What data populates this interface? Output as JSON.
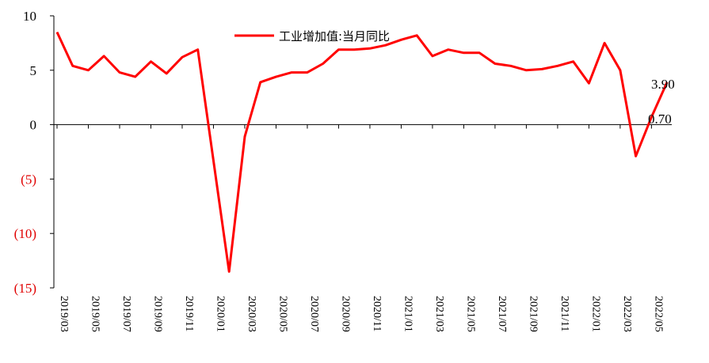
{
  "chart_data": {
    "type": "line",
    "title": "",
    "xlabel": "",
    "ylabel": "",
    "ylim": [
      -15,
      10
    ],
    "y_ticks": [
      10,
      5,
      0,
      -5,
      -10,
      -15
    ],
    "y_tick_labels": [
      "10",
      "5",
      "0",
      "(5)",
      "(10)",
      "(15)"
    ],
    "negative_tick_color": "#e00000",
    "grid": false,
    "legend_position": "top-center",
    "x": [
      "2019/03",
      "2019/04",
      "2019/05",
      "2019/06",
      "2019/07",
      "2019/08",
      "2019/09",
      "2019/10",
      "2019/11",
      "2019/12",
      "2020/01",
      "2020/02",
      "2020/03",
      "2020/04",
      "2020/05",
      "2020/06",
      "2020/07",
      "2020/08",
      "2020/09",
      "2020/10",
      "2020/11",
      "2020/12",
      "2021/01",
      "2021/02",
      "2021/03",
      "2021/04",
      "2021/05",
      "2021/06",
      "2021/07",
      "2021/08",
      "2021/09",
      "2021/10",
      "2021/11",
      "2021/12",
      "2022/01",
      "2022/02",
      "2022/03",
      "2022/04",
      "2022/05",
      "2022/06"
    ],
    "x_tick_labels": [
      "2019/03",
      "2019/05",
      "2019/07",
      "2019/09",
      "2019/11",
      "2020/01",
      "2020/03",
      "2020/05",
      "2020/07",
      "2020/09",
      "2020/11",
      "2021/01",
      "2021/03",
      "2021/05",
      "2021/07",
      "2021/09",
      "2021/11",
      "2022/01",
      "2022/03",
      "2022/05"
    ],
    "series": [
      {
        "name": "工业增加值:当月同比",
        "color": "#ff0000",
        "values": [
          8.5,
          5.4,
          5.0,
          6.3,
          4.8,
          4.4,
          5.8,
          4.7,
          6.2,
          6.9,
          null,
          -13.5,
          -1.1,
          3.9,
          4.4,
          4.8,
          4.8,
          5.6,
          6.9,
          6.9,
          7.0,
          7.3,
          7.8,
          8.2,
          6.3,
          6.9,
          6.6,
          6.6,
          5.6,
          5.4,
          5.0,
          5.1,
          5.4,
          5.8,
          3.8,
          7.5,
          5.0,
          -2.9,
          0.7,
          3.9
        ]
      }
    ],
    "annotations": [
      {
        "text": "3.90",
        "at": "2022/06",
        "value": 3.9
      },
      {
        "text": "0.70",
        "at": "2022/05",
        "value": 0.7
      }
    ]
  }
}
